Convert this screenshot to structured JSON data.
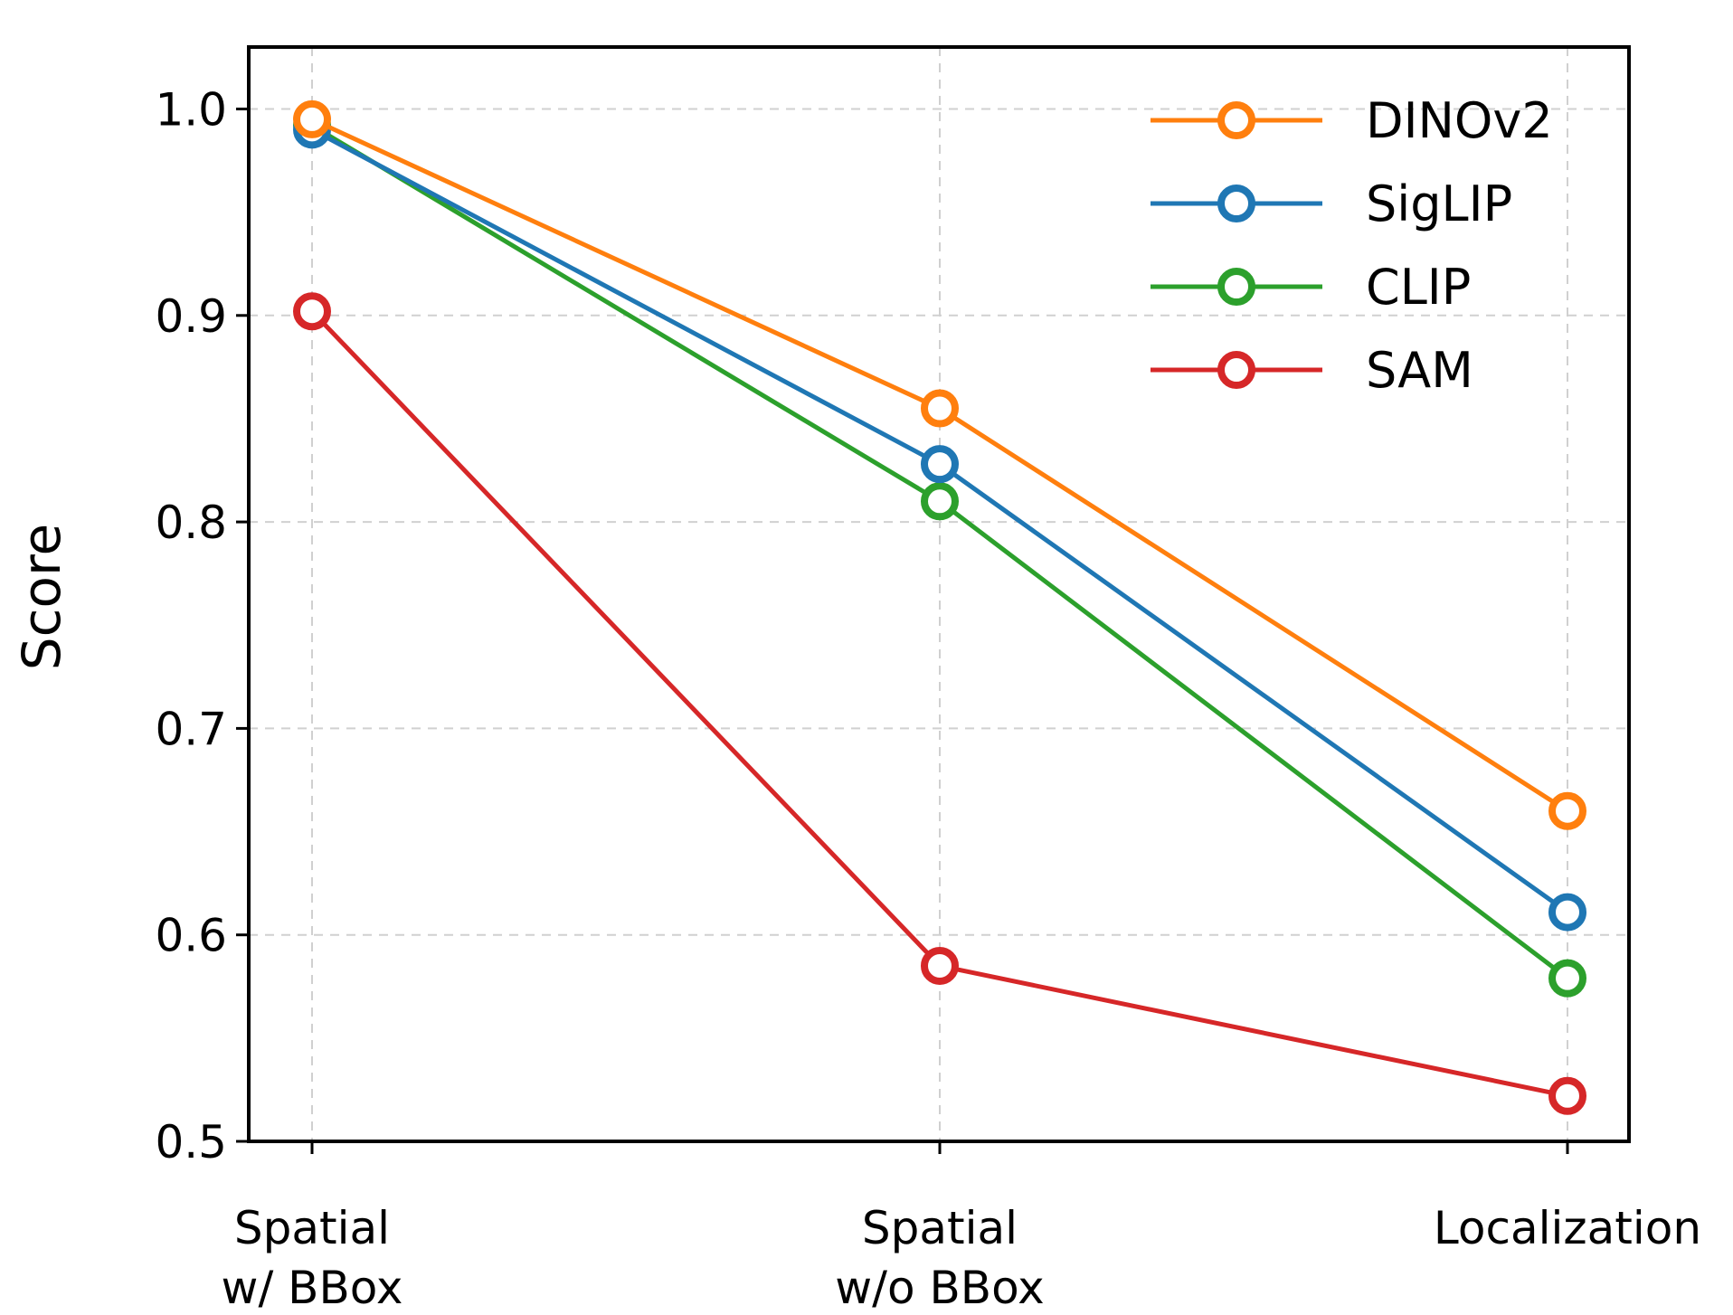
{
  "chart_data": {
    "type": "line",
    "categories": [
      "Spatial\nw/ BBox",
      "Spatial\nw/o BBox",
      "Localization"
    ],
    "ylabel": "Score",
    "ylim": [
      0.5,
      1.03
    ],
    "yticks": [
      "0.5",
      "0.6",
      "0.7",
      "0.8",
      "0.9",
      "1.0"
    ],
    "grid": true,
    "legend_position": "top-right",
    "series": [
      {
        "name": "DINOv2",
        "color": "#ff7f0e",
        "values": [
          0.995,
          0.855,
          0.66
        ]
      },
      {
        "name": "SigLIP",
        "color": "#1f77b4",
        "values": [
          0.99,
          0.828,
          0.611
        ]
      },
      {
        "name": "CLIP",
        "color": "#2ca02c",
        "values": [
          0.992,
          0.81,
          0.579
        ]
      },
      {
        "name": "SAM",
        "color": "#d62728",
        "values": [
          0.902,
          0.585,
          0.522
        ]
      }
    ]
  }
}
